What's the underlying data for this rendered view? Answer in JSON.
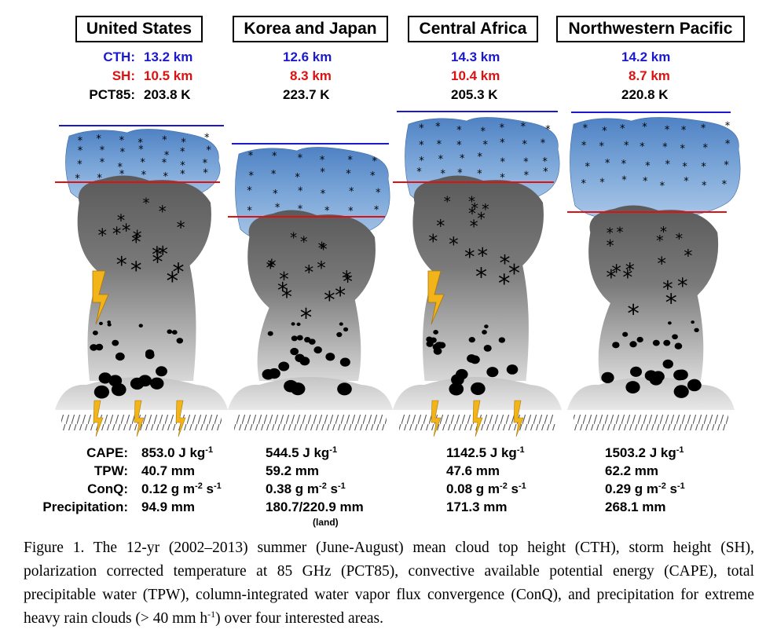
{
  "regions": [
    {
      "name": "United States",
      "cth": "13.2 km",
      "sh": "10.5 km",
      "pct85": "203.8 K",
      "cape": "853.0 J kg",
      "cape_exp": "-1",
      "tpw": "40.7 mm",
      "conq_a": "0.12 g m",
      "conq_e1": "-2",
      "conq_b": " s",
      "conq_e2": "-1",
      "precip": "94.9 mm",
      "precip_note": ""
    },
    {
      "name": "Korea and Japan",
      "cth": "12.6 km",
      "sh": "8.3 km",
      "pct85": "223.7 K",
      "cape": "544.5 J kg",
      "cape_exp": "-1",
      "tpw": "59.2 mm",
      "conq_a": "0.38 g m",
      "conq_e1": "-2",
      "conq_b": " s",
      "conq_e2": "-1",
      "precip": "180.7/220.9 mm",
      "precip_note": "(land)"
    },
    {
      "name": "Central Africa",
      "cth": "14.3 km",
      "sh": "10.4 km",
      "pct85": "205.3 K",
      "cape": "1142.5 J kg",
      "cape_exp": "-1",
      "tpw": "47.6 mm",
      "conq_a": "0.08 g m",
      "conq_e1": "-2",
      "conq_b": " s",
      "conq_e2": "-1",
      "precip": "171.3 mm",
      "precip_note": ""
    },
    {
      "name": "Northwestern Pacific",
      "cth": "14.2 km",
      "sh": "8.7 km",
      "pct85": "220.8 K",
      "cape": "1503.2 J kg",
      "cape_exp": "-1",
      "tpw": "62.2 mm",
      "conq_a": "0.29 g m",
      "conq_e1": "-2",
      "conq_b": " s",
      "conq_e2": "-1",
      "precip": "268.1 mm",
      "precip_note": ""
    }
  ],
  "labels": {
    "cth": "CTH:",
    "sh": "SH:",
    "pct85": "PCT85:",
    "cape": "CAPE:",
    "tpw": "TPW:",
    "conq": "ConQ:",
    "precip": "Precipitation:"
  },
  "colors": {
    "cth_line": "#1a1acc",
    "sh_line": "#dd1111",
    "ice_cloud": "#6d9bd1",
    "cloud_body": "#6e6e6e",
    "lightning": "#f2b418"
  },
  "caption": {
    "part1": "Figure 1. The 12-yr (2002–2013) summer (June-August) mean cloud top height (CTH), storm height (SH), polarization corrected temperature at 85 GHz (PCT85), convective available potential energy (CAPE), total precipitable water (TPW), column-integrated water vapor flux convergence (ConQ), and precipitation for extreme heavy rain clouds (> 40 mm h",
    "sup": "-1",
    "part2": ") over four interested areas."
  }
}
